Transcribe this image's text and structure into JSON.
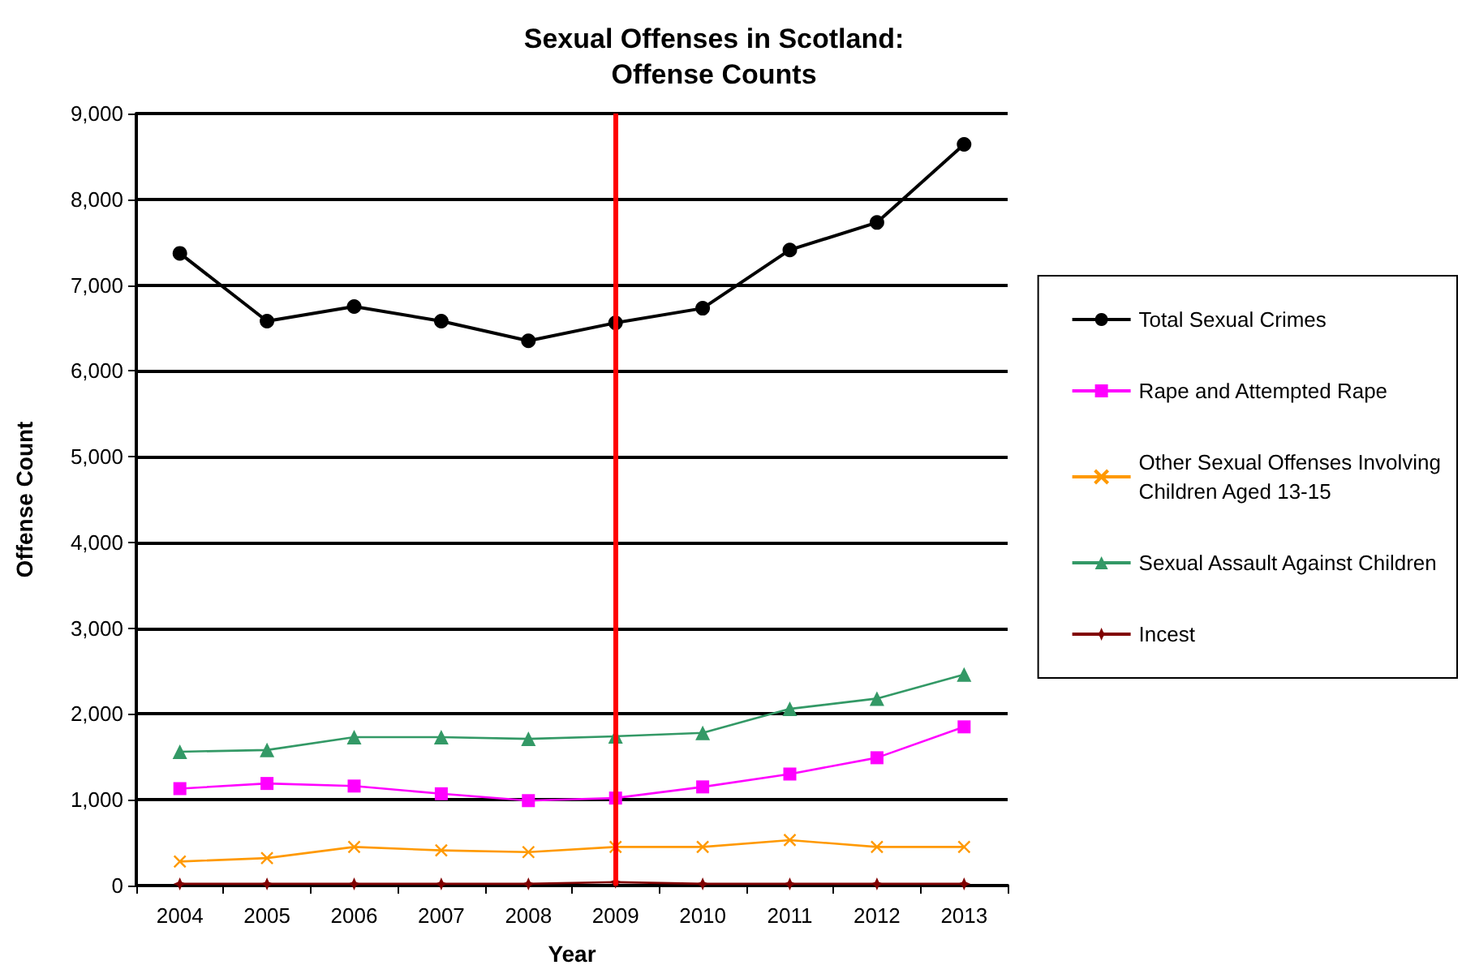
{
  "chart_data": {
    "type": "line",
    "title": "Sexual Offenses in Scotland:\nOffense Counts",
    "xlabel": "Year",
    "ylabel": "Offense Count",
    "categories": [
      "2004",
      "2005",
      "2006",
      "2007",
      "2008",
      "2009",
      "2010",
      "2011",
      "2012",
      "2013"
    ],
    "series": [
      {
        "name": "Total Sexual Crimes",
        "color": "#000000",
        "marker": "circle",
        "values": [
          7370,
          6580,
          6750,
          6580,
          6350,
          6560,
          6730,
          7410,
          7730,
          8640
        ]
      },
      {
        "name": "Rape and Attempted Rape",
        "color": "#ff00ff",
        "marker": "square",
        "values": [
          1130,
          1190,
          1160,
          1070,
          990,
          1020,
          1150,
          1300,
          1490,
          1850
        ]
      },
      {
        "name": "Other Sexual Offenses Involving\nChildren Aged 13-15",
        "color": "#ff9900",
        "marker": "cross",
        "values": [
          280,
          320,
          450,
          410,
          390,
          450,
          450,
          530,
          450,
          450
        ]
      },
      {
        "name": "Sexual Assault Against Children",
        "color": "#339966",
        "marker": "triangle",
        "values": [
          1560,
          1580,
          1730,
          1730,
          1710,
          1740,
          1780,
          2060,
          2180,
          2460
        ]
      },
      {
        "name": "Incest",
        "color": "#800000",
        "marker": "star",
        "values": [
          20,
          20,
          20,
          20,
          20,
          40,
          20,
          20,
          20,
          20
        ]
      }
    ],
    "ylim": [
      0,
      9000
    ],
    "yticks": [
      {
        "value": 0,
        "label": "0"
      },
      {
        "value": 1000,
        "label": "1,000"
      },
      {
        "value": 2000,
        "label": "2,000"
      },
      {
        "value": 3000,
        "label": "3,000"
      },
      {
        "value": 4000,
        "label": "4,000"
      },
      {
        "value": 5000,
        "label": "5,000"
      },
      {
        "value": 6000,
        "label": "6,000"
      },
      {
        "value": 7000,
        "label": "7,000"
      },
      {
        "value": 8000,
        "label": "8,000"
      },
      {
        "value": 9000,
        "label": "9,000"
      }
    ],
    "ref_lines": [
      {
        "axis": "x",
        "value": "2009",
        "color": "#ff0000"
      }
    ],
    "grid": "y",
    "legend": "right"
  }
}
